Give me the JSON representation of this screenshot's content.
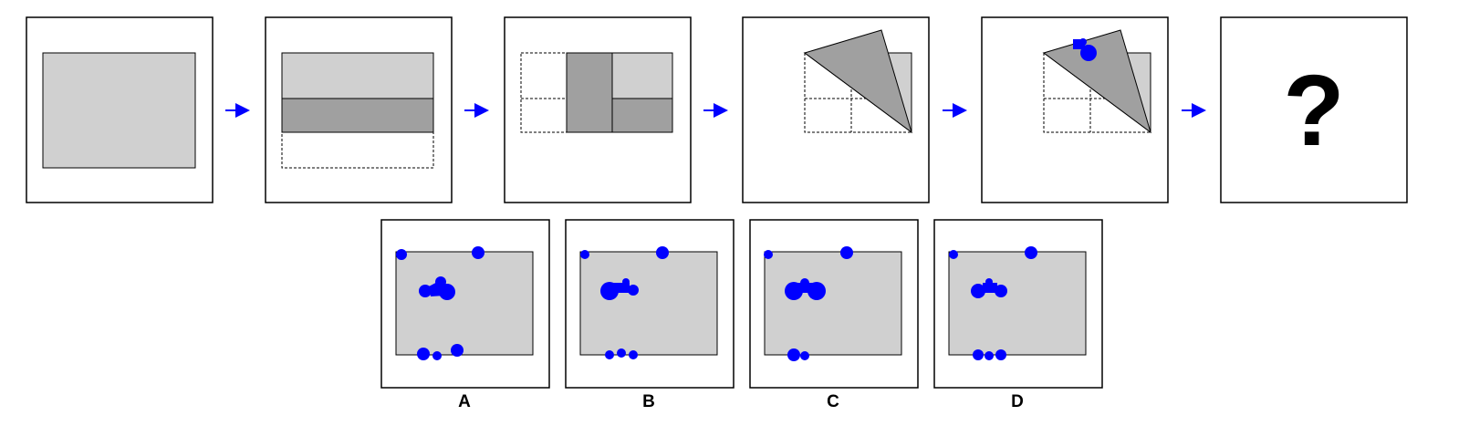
{
  "question_mark": "?",
  "options": [
    {
      "label": "A"
    },
    {
      "label": "B"
    },
    {
      "label": "C"
    },
    {
      "label": "D"
    }
  ],
  "colors": {
    "paper": "#d0d0d0",
    "folded": "#a0a0a0",
    "hole": "#0000ff",
    "arrow": "#0000ff",
    "border": "#000000"
  }
}
